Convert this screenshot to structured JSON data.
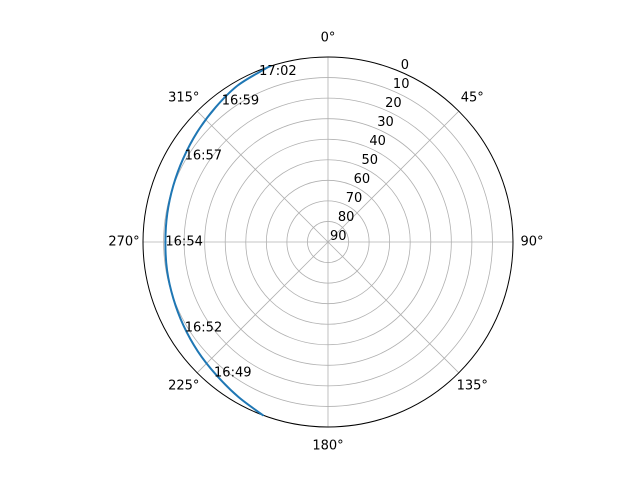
{
  "chart_data": {
    "type": "polar-line",
    "projection": "polar",
    "theta_direction": "clockwise",
    "theta_zero_location": "top",
    "theta_tick_labels": [
      "0°",
      "45°",
      "90°",
      "135°",
      "180°",
      "225°",
      "270°",
      "315°"
    ],
    "theta_ticks_deg": [
      0,
      45,
      90,
      135,
      180,
      225,
      270,
      315
    ],
    "r_axis": {
      "inverted": true,
      "range": [
        90,
        0
      ],
      "tick_labels": [
        "0",
        "10",
        "20",
        "30",
        "40",
        "50",
        "60",
        "70",
        "80",
        "90"
      ],
      "ticks": [
        0,
        10,
        20,
        30,
        40,
        50,
        60,
        70,
        80,
        90
      ]
    },
    "grid": true,
    "colors": {
      "series": "#1f77b4",
      "grid": "#b0b0b0",
      "spine": "#000000",
      "text": "#000000"
    },
    "series": [
      {
        "azimuth_deg": [
          200.6,
          210,
          220,
          230,
          240,
          250,
          260,
          270,
          280,
          290,
          300,
          310,
          320,
          330,
          340,
          341.8
        ],
        "elevation_deg": [
          0,
          2.9,
          5.5,
          7.3,
          8.8,
          9.9,
          10.5,
          10.9,
          10.6,
          9.9,
          8.7,
          6.9,
          4.7,
          2.1,
          0.4,
          0
        ]
      }
    ],
    "annotations": [
      {
        "text": "16:49",
        "azimuth_deg": 221,
        "elevation_deg": 5.5
      },
      {
        "text": "16:52",
        "azimuth_deg": 239,
        "elevation_deg": 8.7
      },
      {
        "text": "16:54",
        "azimuth_deg": 270,
        "elevation_deg": 10.9
      },
      {
        "text": "16:57",
        "azimuth_deg": 301,
        "elevation_deg": 8.6
      },
      {
        "text": "16:59",
        "azimuth_deg": 323,
        "elevation_deg": 4.1
      },
      {
        "text": "17:02",
        "azimuth_deg": 338,
        "elevation_deg": 0.6
      }
    ]
  }
}
